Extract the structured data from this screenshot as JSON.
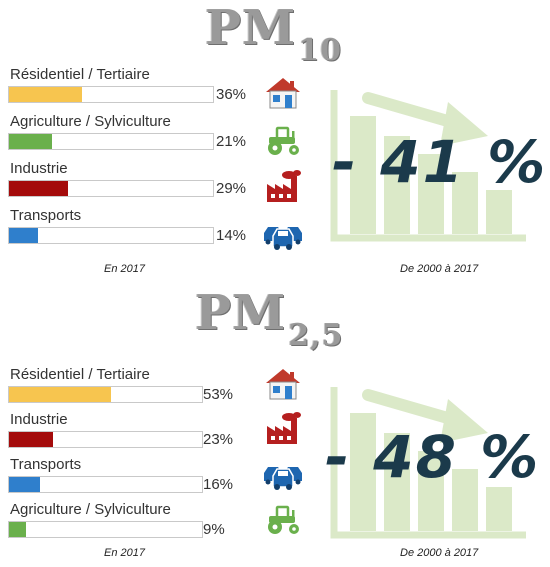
{
  "pm10": {
    "title_main": "PM",
    "title_sub": "10",
    "caption_left": "En 2017",
    "caption_right": "De 2000 à 2017",
    "reduction": "- 41 %"
  },
  "pm25": {
    "title_main": "PM",
    "title_sub": "2,5",
    "caption_left": "En 2017",
    "caption_right": "De 2000 à 2017",
    "reduction": "- 48 %"
  },
  "colors": {
    "residentiel": "#f7c54f",
    "agriculture": "#6ab04c",
    "industrie": "#a40b0b",
    "transports": "#2f7fcc",
    "house_roof": "#c0392b",
    "house_wall": "#2f7fcc",
    "tractor": "#6ab04c",
    "factory": "#b51f1f",
    "cars": "#1e66b0",
    "trend": "#dbe9c8",
    "reduction": "#1b3a4b"
  },
  "chart_data": [
    {
      "type": "bar",
      "title": "PM10",
      "orientation": "horizontal",
      "categories": [
        "Résidentiel / Tertiaire",
        "Agriculture / Sylviculture",
        "Industrie",
        "Transports"
      ],
      "values": [
        36,
        21,
        29,
        14
      ],
      "value_labels": [
        "36%",
        "21%",
        "29%",
        "14%"
      ],
      "icons": [
        "house-icon",
        "tractor-icon",
        "factory-icon",
        "cars-icon"
      ],
      "color_keys": [
        "residentiel",
        "agriculture",
        "industrie",
        "transports"
      ],
      "xlim": [
        0,
        100
      ],
      "unit": "%"
    },
    {
      "type": "bar",
      "title": "PM2,5",
      "orientation": "horizontal",
      "categories": [
        "Résidentiel / Tertiaire",
        "Industrie",
        "Transports",
        "Agriculture / Sylviculture"
      ],
      "values": [
        53,
        23,
        16,
        9
      ],
      "value_labels": [
        "53%",
        "23%",
        "16%",
        "9%"
      ],
      "icons": [
        "house-icon",
        "factory-icon",
        "cars-icon",
        "tractor-icon"
      ],
      "color_keys": [
        "residentiel",
        "industrie",
        "transports",
        "agriculture"
      ],
      "xlim": [
        0,
        100
      ],
      "unit": "%"
    }
  ]
}
